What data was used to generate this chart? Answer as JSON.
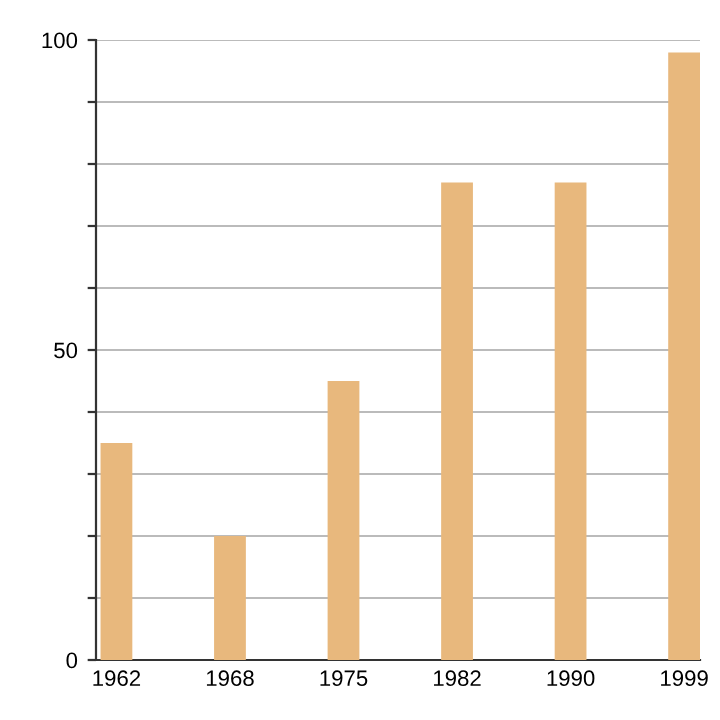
{
  "chart_data": {
    "type": "bar",
    "categories": [
      "1962",
      "1968",
      "1975",
      "1982",
      "1990",
      "1999"
    ],
    "values": [
      35,
      20,
      45,
      77,
      77,
      98
    ],
    "color": "#e8b87d",
    "ylim": [
      0,
      100
    ],
    "yticks": [
      0,
      {
        "value": 10,
        "label": null
      },
      {
        "value": 20,
        "label": null
      },
      {
        "value": 30,
        "label": null
      },
      {
        "value": 40,
        "label": null
      },
      50,
      {
        "value": 60,
        "label": null
      },
      {
        "value": 70,
        "label": null
      },
      {
        "value": 80,
        "label": null
      },
      {
        "value": 90,
        "label": null
      },
      100
    ],
    "grid": "y"
  }
}
